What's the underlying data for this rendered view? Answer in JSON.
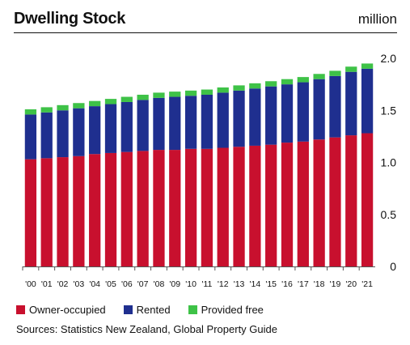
{
  "header": {
    "title": "Dwelling Stock",
    "unit": "million"
  },
  "chart_data": {
    "type": "bar",
    "stacked": true,
    "title": "Dwelling Stock",
    "categories": [
      "'00",
      "'01",
      "'02",
      "'03",
      "'04",
      "'05",
      "'06",
      "'07",
      "'08",
      "'09",
      "'10",
      "'11",
      "'12",
      "'13",
      "'14",
      "'15",
      "'16",
      "'17",
      "'18",
      "'19",
      "'20",
      "'21"
    ],
    "series": [
      {
        "name": "Owner-occupied",
        "color": "#c8102e",
        "values": [
          1.03,
          1.04,
          1.05,
          1.06,
          1.08,
          1.09,
          1.1,
          1.11,
          1.12,
          1.12,
          1.13,
          1.13,
          1.14,
          1.15,
          1.16,
          1.17,
          1.19,
          1.2,
          1.22,
          1.24,
          1.26,
          1.28
        ]
      },
      {
        "name": "Rented",
        "color": "#1f2f8f",
        "values": [
          0.43,
          0.44,
          0.45,
          0.46,
          0.46,
          0.47,
          0.48,
          0.49,
          0.5,
          0.51,
          0.51,
          0.52,
          0.53,
          0.54,
          0.55,
          0.56,
          0.56,
          0.57,
          0.58,
          0.59,
          0.61,
          0.62
        ]
      },
      {
        "name": "Provided free",
        "color": "#3ec247",
        "values": [
          0.05,
          0.05,
          0.05,
          0.05,
          0.05,
          0.05,
          0.05,
          0.05,
          0.05,
          0.05,
          0.05,
          0.05,
          0.05,
          0.05,
          0.05,
          0.05,
          0.05,
          0.05,
          0.05,
          0.05,
          0.05,
          0.05
        ]
      }
    ],
    "y_ticks": [
      "0",
      "0.5",
      "1.0",
      "1.5",
      "2.0"
    ],
    "ylim": [
      0,
      2.0
    ],
    "y_axis_position": "right",
    "grid": false,
    "legend_position": "bottom-left"
  },
  "legend": [
    {
      "label": "Owner-occupied",
      "color": "#c8102e"
    },
    {
      "label": "Rented",
      "color": "#1f2f8f"
    },
    {
      "label": "Provided free",
      "color": "#3ec247"
    }
  ],
  "footer": {
    "sources": "Sources: Statistics New Zealand, Global Property Guide"
  }
}
